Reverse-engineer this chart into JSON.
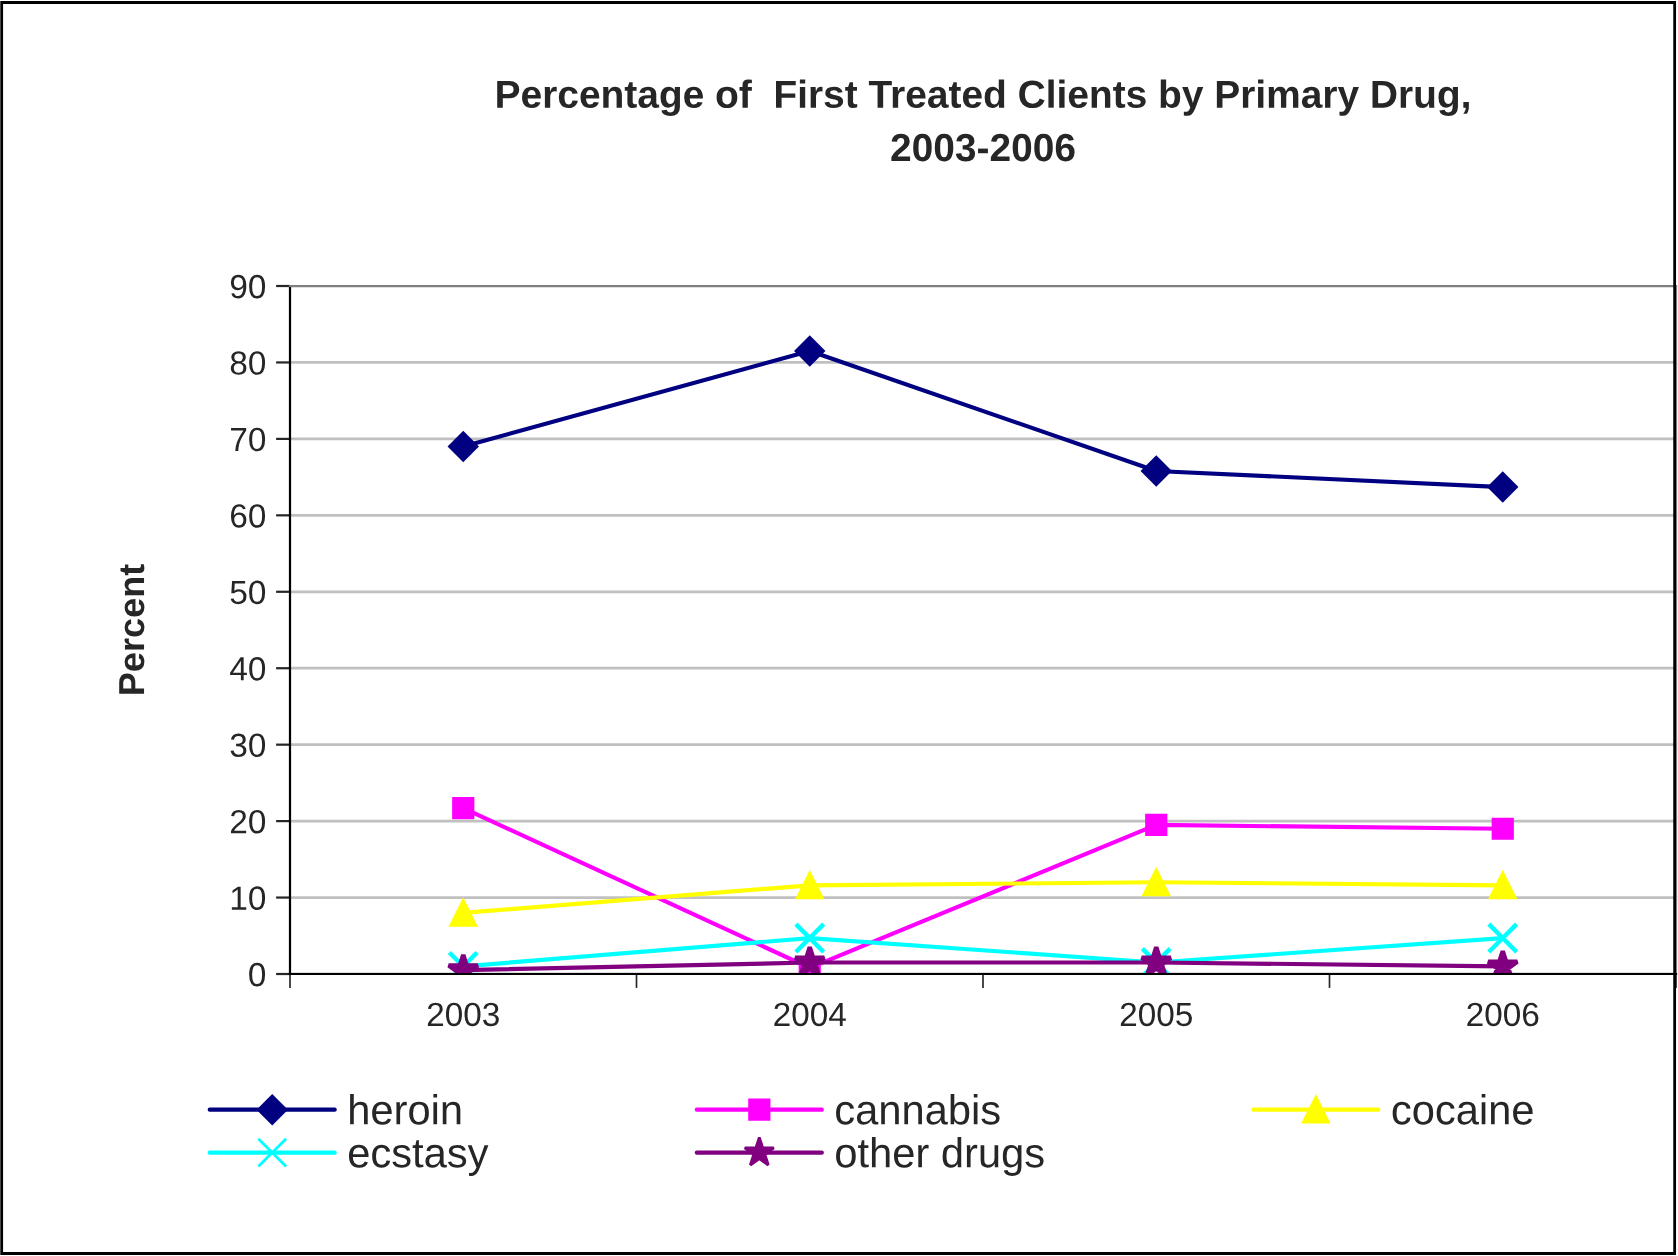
{
  "chart_data": {
    "type": "line",
    "title": "Percentage of  First Treated Clients by Primary Drug,\n2003-2006",
    "ylabel": "Percent",
    "categories": [
      "2003",
      "2004",
      "2005",
      "2006"
    ],
    "series": [
      {
        "name": "heroin",
        "color": "#000080",
        "marker": "diamond",
        "values": [
          69,
          81.5,
          65.8,
          63.7
        ]
      },
      {
        "name": "cannabis",
        "color": "#ff00ff",
        "marker": "square",
        "values": [
          21.7,
          0.8,
          19.5,
          19
        ]
      },
      {
        "name": "cocaine",
        "color": "#ffff00",
        "marker": "triangle",
        "values": [
          8,
          11.6,
          12,
          11.6
        ]
      },
      {
        "name": "ecstasy",
        "color": "#00ffff",
        "marker": "cross",
        "values": [
          1,
          4.7,
          1.5,
          4.7
        ]
      },
      {
        "name": "other drugs",
        "color": "#800080",
        "marker": "star",
        "values": [
          0.5,
          1.5,
          1.5,
          1.0
        ]
      }
    ],
    "ylim": [
      0,
      90
    ],
    "yticks": [
      0,
      10,
      20,
      30,
      40,
      50,
      60,
      70,
      80,
      90
    ],
    "grid": "y",
    "legend": "bottom"
  }
}
